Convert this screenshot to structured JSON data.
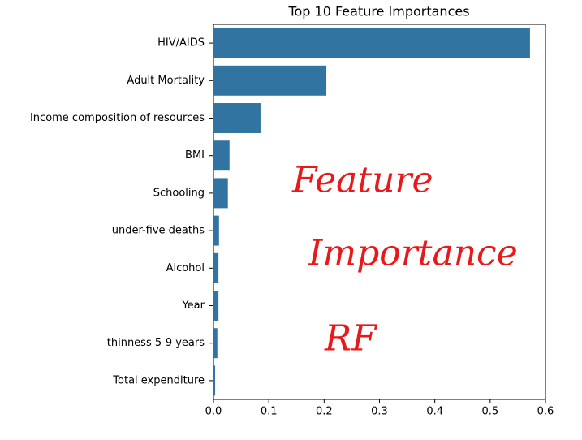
{
  "chart_data": {
    "type": "bar",
    "orientation": "horizontal",
    "title": "Top 10 Feature Importances",
    "categories": [
      "HIV/AIDS",
      "Adult Mortality",
      "Income composition of resources",
      "BMI",
      "Schooling",
      "under-five deaths",
      "Alcohol",
      "Year",
      "thinness 5-9 years",
      "Total expenditure"
    ],
    "values": [
      0.572,
      0.204,
      0.085,
      0.029,
      0.026,
      0.01,
      0.009,
      0.009,
      0.007,
      0.003
    ],
    "color": "#3274a1",
    "xlim": [
      0,
      0.6
    ],
    "xticks": [
      {
        "value": 0,
        "label": "0.0"
      },
      0.1,
      0.2,
      0.3,
      0.4,
      0.5,
      0.6
    ],
    "annotations": [
      "Feature",
      "Importance",
      "RF"
    ],
    "annotation_color": "#e8191b"
  }
}
